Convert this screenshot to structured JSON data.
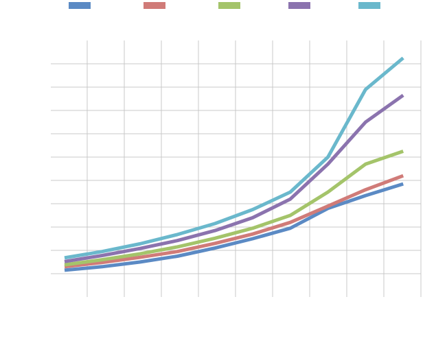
{
  "chart_data": {
    "type": "line",
    "x": [
      1,
      2,
      3,
      4,
      5,
      6,
      7,
      8,
      9,
      10
    ],
    "ylim": [
      0,
      10
    ],
    "grid": true,
    "legend_position": "top",
    "series": [
      {
        "color": "#5b8ac4",
        "values": [
          0.15,
          0.3,
          0.5,
          0.75,
          1.1,
          1.5,
          1.95,
          2.8,
          3.35,
          3.85
        ]
      },
      {
        "color": "#d07b78",
        "values": [
          0.3,
          0.48,
          0.7,
          0.95,
          1.3,
          1.7,
          2.2,
          2.9,
          3.6,
          4.2
        ]
      },
      {
        "color": "#a4c46a",
        "values": [
          0.38,
          0.6,
          0.85,
          1.15,
          1.52,
          1.95,
          2.5,
          3.5,
          4.7,
          5.25
        ]
      },
      {
        "color": "#8b73ae",
        "values": [
          0.52,
          0.78,
          1.08,
          1.42,
          1.85,
          2.4,
          3.2,
          4.7,
          6.5,
          7.65
        ]
      },
      {
        "color": "#6ab8cc",
        "values": [
          0.68,
          0.95,
          1.28,
          1.68,
          2.15,
          2.75,
          3.5,
          5.0,
          7.9,
          9.25
        ]
      }
    ]
  }
}
